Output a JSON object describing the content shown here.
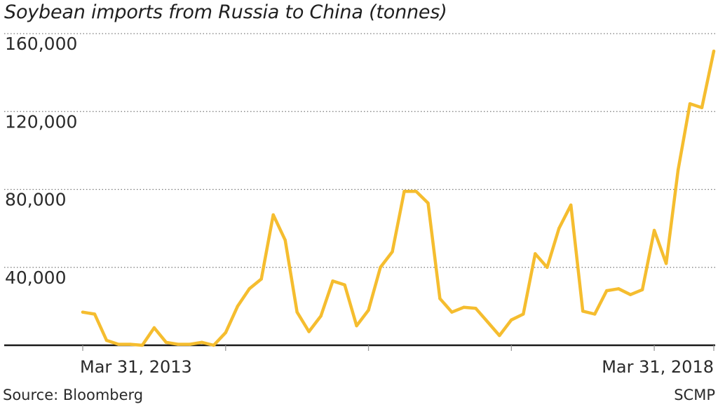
{
  "chart_data": {
    "type": "line",
    "title": "Soybean imports from Russia to China (tonnes)",
    "xlabel": "",
    "ylabel": "",
    "ylim": [
      0,
      160000
    ],
    "yticks": [
      40000,
      80000,
      120000,
      160000
    ],
    "ytick_labels": [
      "40,000",
      "80,000",
      "120,000",
      "160,000"
    ],
    "x_labels": [
      {
        "index": 0,
        "label": "Mar 31, 2013"
      },
      {
        "index": 53,
        "label": "Mar 31, 2018"
      }
    ],
    "grid": "dotted horizontal",
    "series": [
      {
        "color": "#f5bd2f",
        "values": [
          17000,
          16000,
          2500,
          500,
          500,
          0,
          9000,
          1500,
          500,
          500,
          1500,
          0,
          6500,
          20000,
          29000,
          34000,
          67000,
          54000,
          17000,
          7000,
          15000,
          33000,
          31000,
          10000,
          18000,
          40000,
          48000,
          79000,
          79000,
          73000,
          24000,
          17000,
          19500,
          19000,
          12000,
          5000,
          13000,
          16000,
          47000,
          40000,
          60000,
          72000,
          17500,
          16000,
          28000,
          29000,
          26000,
          28500,
          59000,
          42000,
          90000,
          124000,
          122000,
          151000
        ]
      }
    ]
  },
  "footer": {
    "source": "Source: Bloomberg",
    "credit": "SCMP"
  }
}
